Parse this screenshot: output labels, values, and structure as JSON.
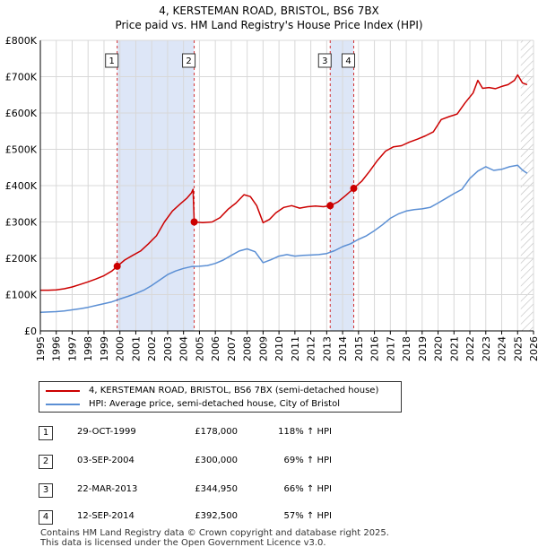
{
  "title_line1": "4, KERSTEMAN ROAD, BRISTOL, BS6 7BX",
  "title_line2": "Price paid vs. HM Land Registry's House Price Index (HPI)",
  "colors": {
    "property": "#cc0000",
    "hpi": "#5b8fd4",
    "shade": "#dde6f7",
    "grid": "#d8d8d8",
    "marker_line": "#cc0000"
  },
  "legend": {
    "property_label": "4, KERSTEMAN ROAD, BRISTOL, BS6 7BX (semi-detached house)",
    "hpi_label": "HPI: Average price, semi-detached house, City of Bristol"
  },
  "sales": [
    {
      "num": "1",
      "date": "29-OCT-1999",
      "price": "£178,000",
      "hpi": "118% ↑ HPI"
    },
    {
      "num": "2",
      "date": "03-SEP-2004",
      "price": "£300,000",
      "hpi": "69% ↑ HPI"
    },
    {
      "num": "3",
      "date": "22-MAR-2013",
      "price": "£344,950",
      "hpi": "66% ↑ HPI"
    },
    {
      "num": "4",
      "date": "12-SEP-2014",
      "price": "£392,500",
      "hpi": "57% ↑ HPI"
    }
  ],
  "footer": {
    "line1": "Contains HM Land Registry data © Crown copyright and database right 2025.",
    "line2": "This data is licensed under the Open Government Licence v3.0."
  },
  "chart_data": {
    "type": "line",
    "title": "4, KERSTEMAN ROAD, BRISTOL, BS6 7BX — Price paid vs. HM Land Registry's House Price Index (HPI)",
    "xlabel": "",
    "ylabel": "",
    "xlim": [
      1995,
      2026
    ],
    "ylim": [
      0,
      800000
    ],
    "x_ticks": [
      1995,
      1996,
      1997,
      1998,
      1999,
      2000,
      2001,
      2002,
      2003,
      2004,
      2005,
      2006,
      2007,
      2008,
      2009,
      2010,
      2011,
      2012,
      2013,
      2014,
      2015,
      2016,
      2017,
      2018,
      2019,
      2020,
      2021,
      2022,
      2023,
      2024,
      2025,
      2026
    ],
    "y_ticks": [
      {
        "value": 0,
        "label": "£0"
      },
      {
        "value": 100000,
        "label": "£100K"
      },
      {
        "value": 200000,
        "label": "£200K"
      },
      {
        "value": 300000,
        "label": "£300K"
      },
      {
        "value": 400000,
        "label": "£400K"
      },
      {
        "value": 500000,
        "label": "£500K"
      },
      {
        "value": 600000,
        "label": "£600K"
      },
      {
        "value": 700000,
        "label": "£700K"
      },
      {
        "value": 800000,
        "label": "£800K"
      }
    ],
    "grid": true,
    "shaded_ranges": [
      [
        1999.83,
        2004.67
      ],
      [
        2013.22,
        2014.7
      ]
    ],
    "hatched_from": 2025.2,
    "sale_markers": [
      {
        "num": "1",
        "x": 1999.83,
        "y": 178000
      },
      {
        "num": "2",
        "x": 2004.67,
        "y": 300000
      },
      {
        "num": "3",
        "x": 2013.22,
        "y": 344950
      },
      {
        "num": "4",
        "x": 2014.7,
        "y": 392500
      }
    ],
    "series": [
      {
        "name": "4, KERSTEMAN ROAD, BRISTOL, BS6 7BX (semi-detached house)",
        "color": "#cc0000",
        "x": [
          1995.0,
          1995.5,
          1996.0,
          1996.5,
          1997.0,
          1997.5,
          1998.0,
          1998.5,
          1999.0,
          1999.5,
          1999.83,
          2000.3,
          2000.8,
          2001.3,
          2001.8,
          2002.3,
          2002.8,
          2003.3,
          2003.8,
          2004.2,
          2004.5,
          2004.6,
          2004.67,
          2005.2,
          2005.8,
          2006.3,
          2006.8,
          2007.3,
          2007.8,
          2008.2,
          2008.6,
          2009.0,
          2009.4,
          2009.8,
          2010.3,
          2010.8,
          2011.3,
          2011.8,
          2012.3,
          2012.8,
          2013.22,
          2013.7,
          2014.2,
          2014.7,
          2015.2,
          2015.7,
          2016.2,
          2016.7,
          2017.2,
          2017.7,
          2018.2,
          2018.7,
          2019.2,
          2019.7,
          2020.2,
          2020.7,
          2021.2,
          2021.7,
          2022.2,
          2022.5,
          2022.8,
          2023.2,
          2023.6,
          2024.0,
          2024.4,
          2024.8,
          2025.0,
          2025.3,
          2025.6
        ],
        "y": [
          112000,
          112000,
          113000,
          116000,
          121000,
          128000,
          135000,
          143000,
          152000,
          165000,
          178000,
          195000,
          208000,
          220000,
          240000,
          262000,
          300000,
          330000,
          350000,
          365000,
          380000,
          390000,
          300000,
          298000,
          300000,
          312000,
          335000,
          352000,
          375000,
          370000,
          345000,
          298000,
          307000,
          325000,
          340000,
          345000,
          338000,
          342000,
          344000,
          342000,
          344950,
          355000,
          373000,
          392500,
          412000,
          440000,
          470000,
          495000,
          507000,
          510000,
          520000,
          528000,
          537000,
          548000,
          582000,
          590000,
          597000,
          628000,
          655000,
          690000,
          668000,
          670000,
          667000,
          673000,
          678000,
          690000,
          705000,
          683000,
          678000
        ]
      },
      {
        "name": "HPI: Average price, semi-detached house, City of Bristol",
        "color": "#5b8fd4",
        "x": [
          1995.0,
          1995.5,
          1996.0,
          1996.5,
          1997.0,
          1997.5,
          1998.0,
          1998.5,
          1999.0,
          1999.5,
          2000.0,
          2000.5,
          2001.0,
          2001.5,
          2002.0,
          2002.5,
          2003.0,
          2003.5,
          2004.0,
          2004.5,
          2005.0,
          2005.5,
          2006.0,
          2006.5,
          2007.0,
          2007.5,
          2008.0,
          2008.5,
          2009.0,
          2009.5,
          2010.0,
          2010.5,
          2011.0,
          2011.5,
          2012.0,
          2012.5,
          2013.0,
          2013.5,
          2014.0,
          2014.5,
          2015.0,
          2015.5,
          2016.0,
          2016.5,
          2017.0,
          2017.5,
          2018.0,
          2018.5,
          2019.0,
          2019.5,
          2020.0,
          2020.5,
          2021.0,
          2021.5,
          2022.0,
          2022.5,
          2023.0,
          2023.5,
          2024.0,
          2024.5,
          2025.0,
          2025.3,
          2025.6
        ],
        "y": [
          51000,
          52000,
          53000,
          55000,
          58000,
          61000,
          65000,
          70000,
          75000,
          80000,
          88000,
          95000,
          103000,
          112000,
          125000,
          140000,
          155000,
          165000,
          172000,
          177000,
          178000,
          180000,
          186000,
          195000,
          208000,
          220000,
          226000,
          218000,
          188000,
          196000,
          206000,
          210000,
          206000,
          208000,
          209000,
          210000,
          213000,
          221000,
          232000,
          240000,
          252000,
          262000,
          276000,
          292000,
          310000,
          322000,
          330000,
          334000,
          336000,
          340000,
          352000,
          365000,
          378000,
          390000,
          420000,
          440000,
          452000,
          442000,
          445000,
          452000,
          456000,
          443000,
          434000
        ]
      }
    ]
  }
}
